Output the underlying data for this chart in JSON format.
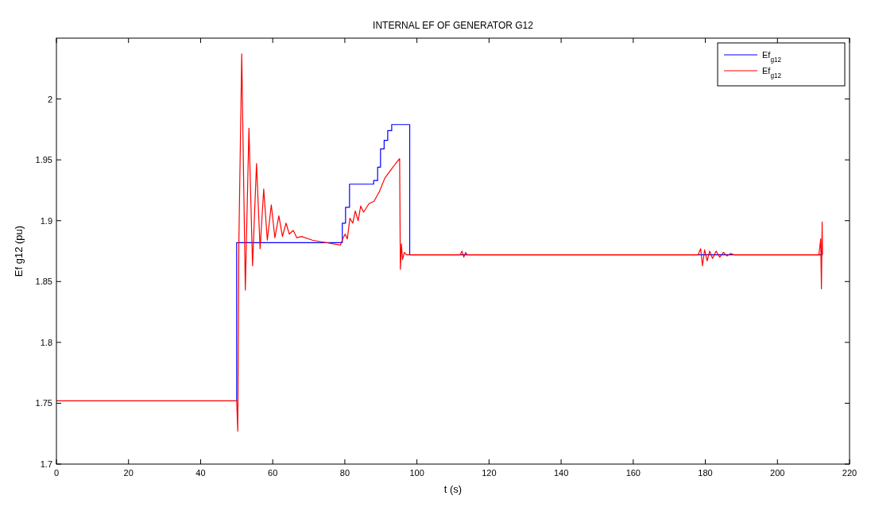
{
  "chart_data": {
    "type": "line",
    "title": "INTERNAL EF OF GENERATOR G12",
    "xlabel": "t (s)",
    "ylabel": "Ef g12 (pu)",
    "xlim": [
      0,
      220
    ],
    "xticks": [
      0,
      20,
      40,
      60,
      80,
      100,
      120,
      140,
      160,
      180,
      200,
      220
    ],
    "ylim": [
      1.7,
      2.05
    ],
    "yticks": [
      1.7,
      1.75,
      1.8,
      1.85,
      1.9,
      1.95,
      2
    ],
    "grid": false,
    "legend": "top right",
    "line_style": "solid",
    "series": [
      {
        "name": "Ef$_{g12}$",
        "color": "#0000ff",
        "type": "step",
        "x": [
          50,
          50,
          79.3,
          80.2,
          81.3,
          88,
          89.1,
          89.9,
          90.9,
          91.9,
          93,
          98,
          212.5
        ],
        "values": [
          1.752,
          1.882,
          1.898,
          1.911,
          1.93,
          1.933,
          1.944,
          1.959,
          1.966,
          1.974,
          1.979,
          1.872,
          1.872
        ]
      },
      {
        "name": "Ef$_{g12}$",
        "color": "#ff0000",
        "x": [
          0,
          50,
          50.3,
          50.6,
          51.4,
          52.4,
          53.4,
          54.4,
          55.5,
          56.5,
          57.5,
          58.5,
          59.6,
          60.6,
          61.7,
          62.7,
          63.7,
          64.6,
          65.7,
          66.7,
          68,
          71,
          74.7,
          78.8,
          79.4,
          80.1,
          80.7,
          81.4,
          82.2,
          82.9,
          83.7,
          84.4,
          85.2,
          86.7,
          88.1,
          89.6,
          91.1,
          92.6,
          94.1,
          95.2,
          95.4,
          95.7,
          96,
          96.5,
          97.1,
          112,
          112.5,
          113,
          113.5,
          114,
          178,
          178.7,
          179.2,
          179.8,
          180.5,
          181.2,
          182,
          183,
          184,
          185,
          186,
          187,
          188,
          211.5,
          212,
          212.2,
          212.4,
          212.5
        ],
        "values": [
          1.752,
          1.752,
          1.727,
          1.88,
          2.037,
          1.843,
          1.976,
          1.863,
          1.947,
          1.877,
          1.926,
          1.884,
          1.913,
          1.886,
          1.904,
          1.887,
          1.898,
          1.889,
          1.892,
          1.886,
          1.887,
          1.884,
          1.882,
          1.88,
          1.885,
          1.889,
          1.885,
          1.902,
          1.898,
          1.908,
          1.9,
          1.912,
          1.907,
          1.914,
          1.916,
          1.924,
          1.935,
          1.941,
          1.947,
          1.951,
          1.86,
          1.881,
          1.868,
          1.874,
          1.872,
          1.872,
          1.875,
          1.87,
          1.874,
          1.872,
          1.872,
          1.877,
          1.863,
          1.876,
          1.867,
          1.875,
          1.869,
          1.875,
          1.87,
          1.874,
          1.871,
          1.873,
          1.872,
          1.872,
          1.885,
          1.844,
          1.899,
          1.872
        ]
      }
    ]
  }
}
